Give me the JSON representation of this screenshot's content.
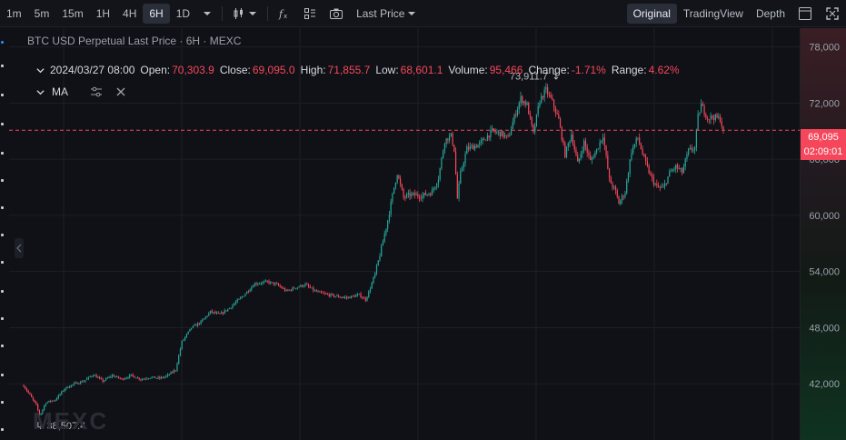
{
  "toolbar": {
    "timeframes": [
      "1m",
      "5m",
      "15m",
      "1H",
      "4H",
      "6H",
      "1D"
    ],
    "active_timeframe": "6H",
    "price_type": "Last Price",
    "views": [
      "Original",
      "TradingView",
      "Depth"
    ],
    "active_view": "Original"
  },
  "legend": {
    "title": "BTC USD Perpetual Last Price · 6H · MEXC"
  },
  "ohlc": {
    "date": "2024/03/27 08:00",
    "open_label": "Open:",
    "open": "70,303.9",
    "close_label": "Close:",
    "close": "69,095.0",
    "high_label": "High:",
    "high": "71,855.7",
    "low_label": "Low:",
    "low": "68,601.1",
    "volume_label": "Volume:",
    "volume": "95,466",
    "change_label": "Change:",
    "change": "-1.71%",
    "range_label": "Range:",
    "range": "4.62%"
  },
  "indicator": {
    "name": "MA"
  },
  "price_tag": {
    "price": "69,095",
    "countdown": "02:09:01"
  },
  "watermark": "MEXC",
  "colors": {
    "up": "#26a69a",
    "down": "#f5475b",
    "background": "#0f1116",
    "grid": "#1c1f26"
  },
  "chart_data": {
    "type": "candlestick",
    "title": "BTC USD Perpetual Last Price · 6H · MEXC",
    "ylim": [
      36000,
      80000
    ],
    "yticks": [
      42000,
      48000,
      54000,
      60000,
      66000,
      72000,
      78000
    ],
    "ytick_labels": [
      "42,000",
      "48,000",
      "54,000",
      "60,000",
      "66,000",
      "72,000",
      "78,000"
    ],
    "current_price": 69095,
    "annotations": [
      {
        "text": "73,911.7",
        "value": 73911.7,
        "kind": "high"
      },
      {
        "text": "38,507.4",
        "value": 38507.4,
        "kind": "low"
      }
    ],
    "anchors": [
      [
        0,
        41800
      ],
      [
        4,
        40800
      ],
      [
        8,
        39700
      ],
      [
        10,
        38700
      ],
      [
        11,
        38900
      ],
      [
        14,
        40000
      ],
      [
        20,
        40300
      ],
      [
        26,
        41500
      ],
      [
        32,
        42000
      ],
      [
        38,
        42300
      ],
      [
        44,
        43000
      ],
      [
        50,
        42300
      ],
      [
        56,
        42900
      ],
      [
        62,
        42500
      ],
      [
        68,
        42900
      ],
      [
        74,
        42500
      ],
      [
        80,
        42700
      ],
      [
        86,
        42600
      ],
      [
        90,
        42800
      ],
      [
        96,
        43500
      ],
      [
        100,
        46500
      ],
      [
        106,
        48000
      ],
      [
        112,
        48600
      ],
      [
        118,
        49700
      ],
      [
        124,
        49400
      ],
      [
        130,
        50100
      ],
      [
        138,
        51300
      ],
      [
        146,
        52700
      ],
      [
        154,
        52900
      ],
      [
        160,
        52600
      ],
      [
        166,
        51900
      ],
      [
        172,
        52300
      ],
      [
        178,
        52600
      ],
      [
        184,
        51900
      ],
      [
        190,
        51600
      ],
      [
        196,
        51400
      ],
      [
        204,
        51200
      ],
      [
        212,
        51500
      ],
      [
        216,
        51000
      ],
      [
        218,
        51800
      ],
      [
        222,
        53700
      ],
      [
        226,
        56500
      ],
      [
        230,
        59500
      ],
      [
        234,
        63000
      ],
      [
        236,
        64500
      ],
      [
        240,
        61900
      ],
      [
        244,
        62200
      ],
      [
        252,
        62100
      ],
      [
        258,
        62500
      ],
      [
        262,
        64000
      ],
      [
        266,
        68000
      ],
      [
        270,
        68500
      ],
      [
        272,
        67000
      ],
      [
        274,
        61800
      ],
      [
        276,
        64500
      ],
      [
        280,
        67100
      ],
      [
        288,
        67600
      ],
      [
        296,
        69000
      ],
      [
        302,
        68700
      ],
      [
        306,
        68200
      ],
      [
        310,
        70500
      ],
      [
        314,
        72500
      ],
      [
        318,
        71800
      ],
      [
        322,
        68700
      ],
      [
        326,
        72300
      ],
      [
        330,
        73400
      ],
      [
        334,
        72100
      ],
      [
        338,
        70200
      ],
      [
        342,
        66500
      ],
      [
        346,
        68700
      ],
      [
        350,
        65500
      ],
      [
        354,
        67800
      ],
      [
        358,
        65800
      ],
      [
        362,
        67000
      ],
      [
        366,
        68600
      ],
      [
        370,
        63800
      ],
      [
        374,
        62500
      ],
      [
        376,
        61300
      ],
      [
        380,
        62500
      ],
      [
        384,
        66900
      ],
      [
        388,
        68300
      ],
      [
        392,
        66000
      ],
      [
        396,
        64200
      ],
      [
        400,
        63000
      ],
      [
        404,
        62900
      ],
      [
        408,
        64500
      ],
      [
        412,
        65200
      ],
      [
        416,
        64600
      ],
      [
        420,
        66900
      ],
      [
        424,
        67200
      ],
      [
        426,
        70500
      ],
      [
        428,
        71800
      ],
      [
        432,
        70400
      ],
      [
        436,
        70500
      ],
      [
        440,
        70300
      ],
      [
        442,
        69095
      ]
    ],
    "candle_count": 443
  }
}
